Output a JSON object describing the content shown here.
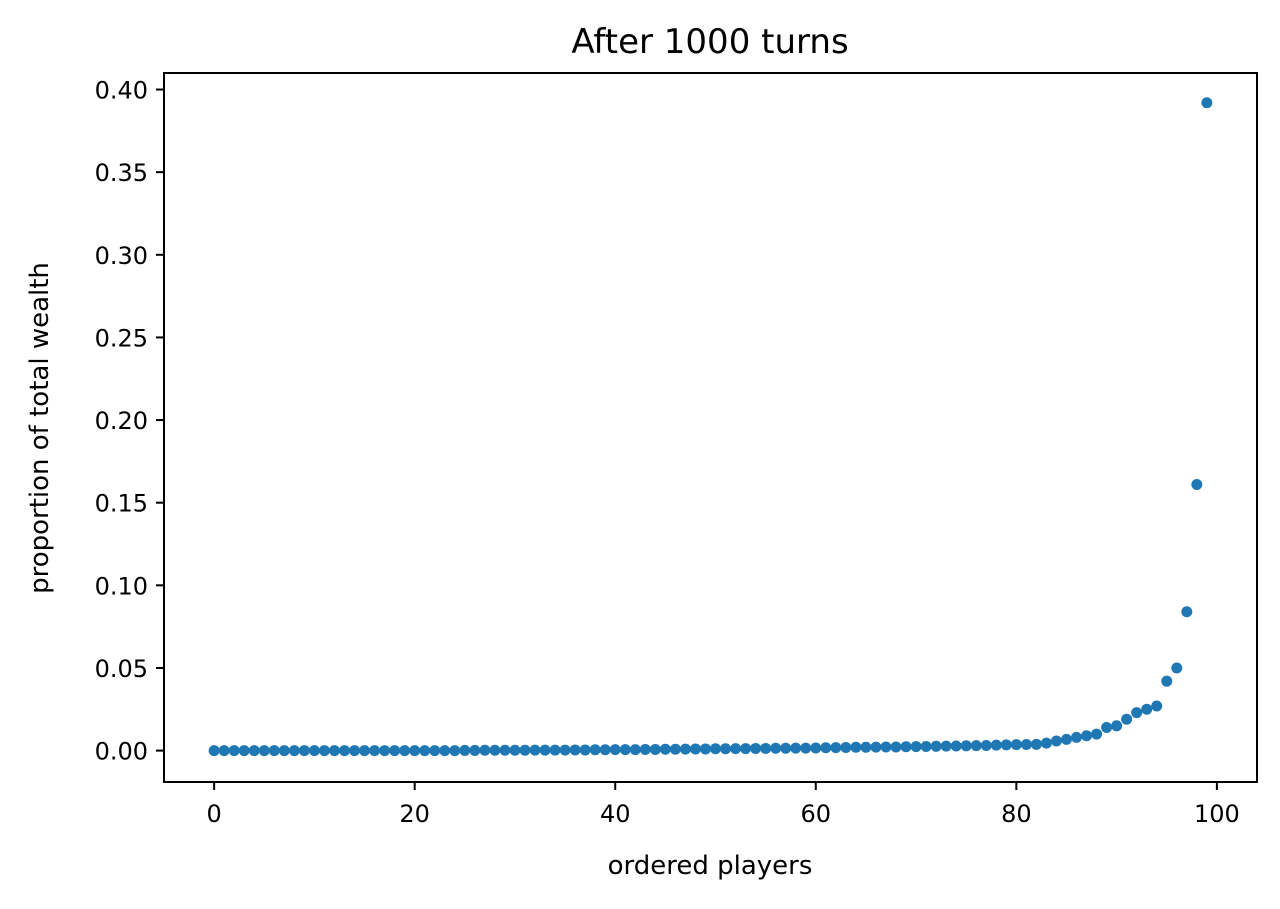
{
  "chart_data": {
    "type": "scatter",
    "title": "After 1000 turns",
    "xlabel": "ordered players",
    "ylabel": "proportion of total wealth",
    "xlim": [
      -5,
      104
    ],
    "ylim": [
      -0.019,
      0.41
    ],
    "xticks": [
      {
        "value": 0,
        "label": "0"
      },
      {
        "value": 20,
        "label": "20"
      },
      {
        "value": 40,
        "label": "40"
      },
      {
        "value": 60,
        "label": "60"
      },
      {
        "value": 80,
        "label": "80"
      },
      {
        "value": 100,
        "label": "100"
      }
    ],
    "yticks": [
      {
        "value": 0.0,
        "label": "0.00"
      },
      {
        "value": 0.05,
        "label": "0.05"
      },
      {
        "value": 0.1,
        "label": "0.10"
      },
      {
        "value": 0.15,
        "label": "0.15"
      },
      {
        "value": 0.2,
        "label": "0.20"
      },
      {
        "value": 0.25,
        "label": "0.25"
      },
      {
        "value": 0.3,
        "label": "0.30"
      },
      {
        "value": 0.35,
        "label": "0.35"
      },
      {
        "value": 0.4,
        "label": "0.40"
      }
    ],
    "grid": false,
    "color": "#1f77b4",
    "series": [
      {
        "x": [
          0,
          1,
          2,
          3,
          4,
          5,
          6,
          7,
          8,
          9,
          10,
          11,
          12,
          13,
          14,
          15,
          16,
          17,
          18,
          19,
          20,
          21,
          22,
          23,
          24,
          25,
          26,
          27,
          28,
          29,
          30,
          31,
          32,
          33,
          34,
          35,
          36,
          37,
          38,
          39,
          40,
          41,
          42,
          43,
          44,
          45,
          46,
          47,
          48,
          49,
          50,
          51,
          52,
          53,
          54,
          55,
          56,
          57,
          58,
          59,
          60,
          61,
          62,
          63,
          64,
          65,
          66,
          67,
          68,
          69,
          70,
          71,
          72,
          73,
          74,
          75,
          76,
          77,
          78,
          79,
          80,
          81,
          82,
          83,
          84,
          85,
          86,
          87,
          88,
          89,
          90,
          91,
          92,
          93,
          94,
          95,
          96,
          97,
          98,
          99
        ],
        "y": [
          0.0,
          0.0,
          0.0,
          0.0,
          0.0,
          0.0,
          0.0,
          0.0,
          0.0,
          0.0,
          0.0,
          0.0,
          0.0,
          0.0,
          0.0,
          0.0,
          0.0,
          0.0,
          0.0,
          0.0,
          0.0,
          0.0,
          0.0,
          0.0,
          0.0,
          0.0001,
          0.0001,
          0.0002,
          0.0002,
          0.0002,
          0.0002,
          0.0002,
          0.0003,
          0.0003,
          0.0003,
          0.0003,
          0.0004,
          0.0004,
          0.0005,
          0.0005,
          0.0006,
          0.0006,
          0.0006,
          0.0007,
          0.0007,
          0.0008,
          0.0008,
          0.0009,
          0.001,
          0.001,
          0.0011,
          0.0011,
          0.0012,
          0.0012,
          0.0013,
          0.0013,
          0.0014,
          0.0014,
          0.0015,
          0.0015,
          0.0016,
          0.0017,
          0.0018,
          0.0019,
          0.002,
          0.002,
          0.0021,
          0.0022,
          0.0022,
          0.0023,
          0.0024,
          0.0025,
          0.0026,
          0.0027,
          0.0028,
          0.0029,
          0.003,
          0.0031,
          0.0033,
          0.0035,
          0.0036,
          0.0037,
          0.0038,
          0.0045,
          0.0058,
          0.0068,
          0.008,
          0.009,
          0.01,
          0.014,
          0.015,
          0.019,
          0.023,
          0.025,
          0.027,
          0.042,
          0.05,
          0.084,
          0.161,
          0.392
        ]
      }
    ]
  }
}
